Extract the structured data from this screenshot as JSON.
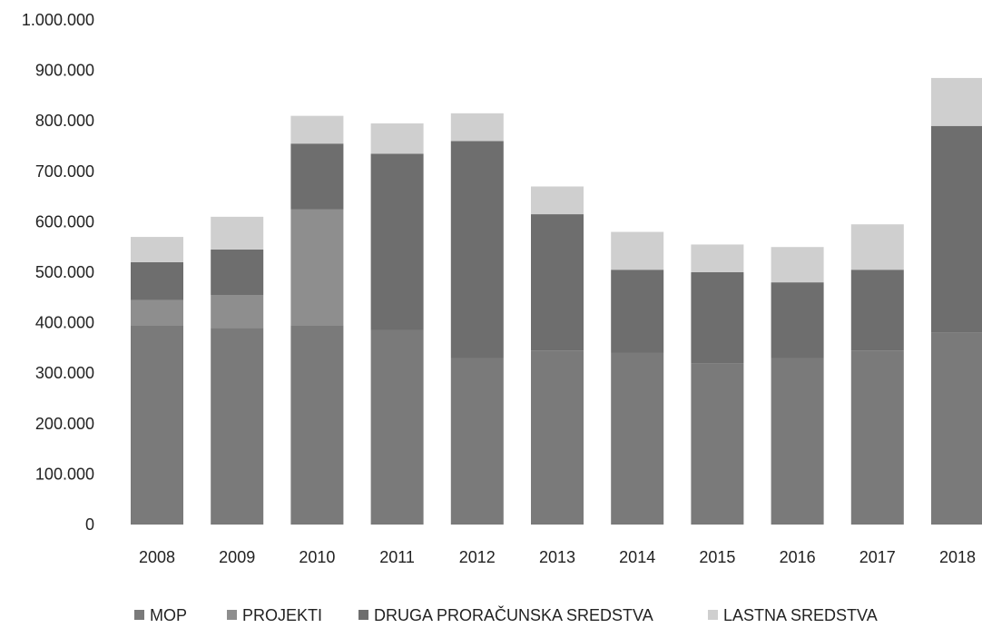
{
  "chart_data": {
    "type": "bar",
    "stacked": true,
    "categories": [
      "2008",
      "2009",
      "2010",
      "2011",
      "2012",
      "2013",
      "2014",
      "2015",
      "2016",
      "2017",
      "2018"
    ],
    "series": [
      {
        "name": "MOP",
        "color": "#7a7a7a",
        "values": [
          395000,
          390000,
          395000,
          385000,
          330000,
          345000,
          340000,
          320000,
          330000,
          345000,
          380000
        ]
      },
      {
        "name": "PROJEKTI",
        "color": "#8e8e8e",
        "values": [
          50000,
          65000,
          230000,
          0,
          0,
          0,
          0,
          0,
          0,
          0,
          0
        ]
      },
      {
        "name": "DRUGA PRORAČUNSKA SREDSTVA",
        "color": "#6e6e6e",
        "values": [
          75000,
          90000,
          130000,
          350000,
          430000,
          270000,
          165000,
          180000,
          150000,
          160000,
          410000
        ]
      },
      {
        "name": "LASTNA SREDSTVA",
        "color": "#cfcfcf",
        "values": [
          50000,
          65000,
          55000,
          60000,
          55000,
          55000,
          75000,
          55000,
          70000,
          90000,
          95000
        ]
      }
    ],
    "ylim": [
      0,
      1000000
    ],
    "yticks": [
      "0",
      "100.000",
      "200.000",
      "300.000",
      "400.000",
      "500.000",
      "600.000",
      "700.000",
      "800.000",
      "900.000",
      "1.000.000"
    ],
    "ytick_values": [
      0,
      100000,
      200000,
      300000,
      400000,
      500000,
      600000,
      700000,
      800000,
      900000,
      1000000
    ],
    "grid": false,
    "legend_position": "bottom"
  }
}
